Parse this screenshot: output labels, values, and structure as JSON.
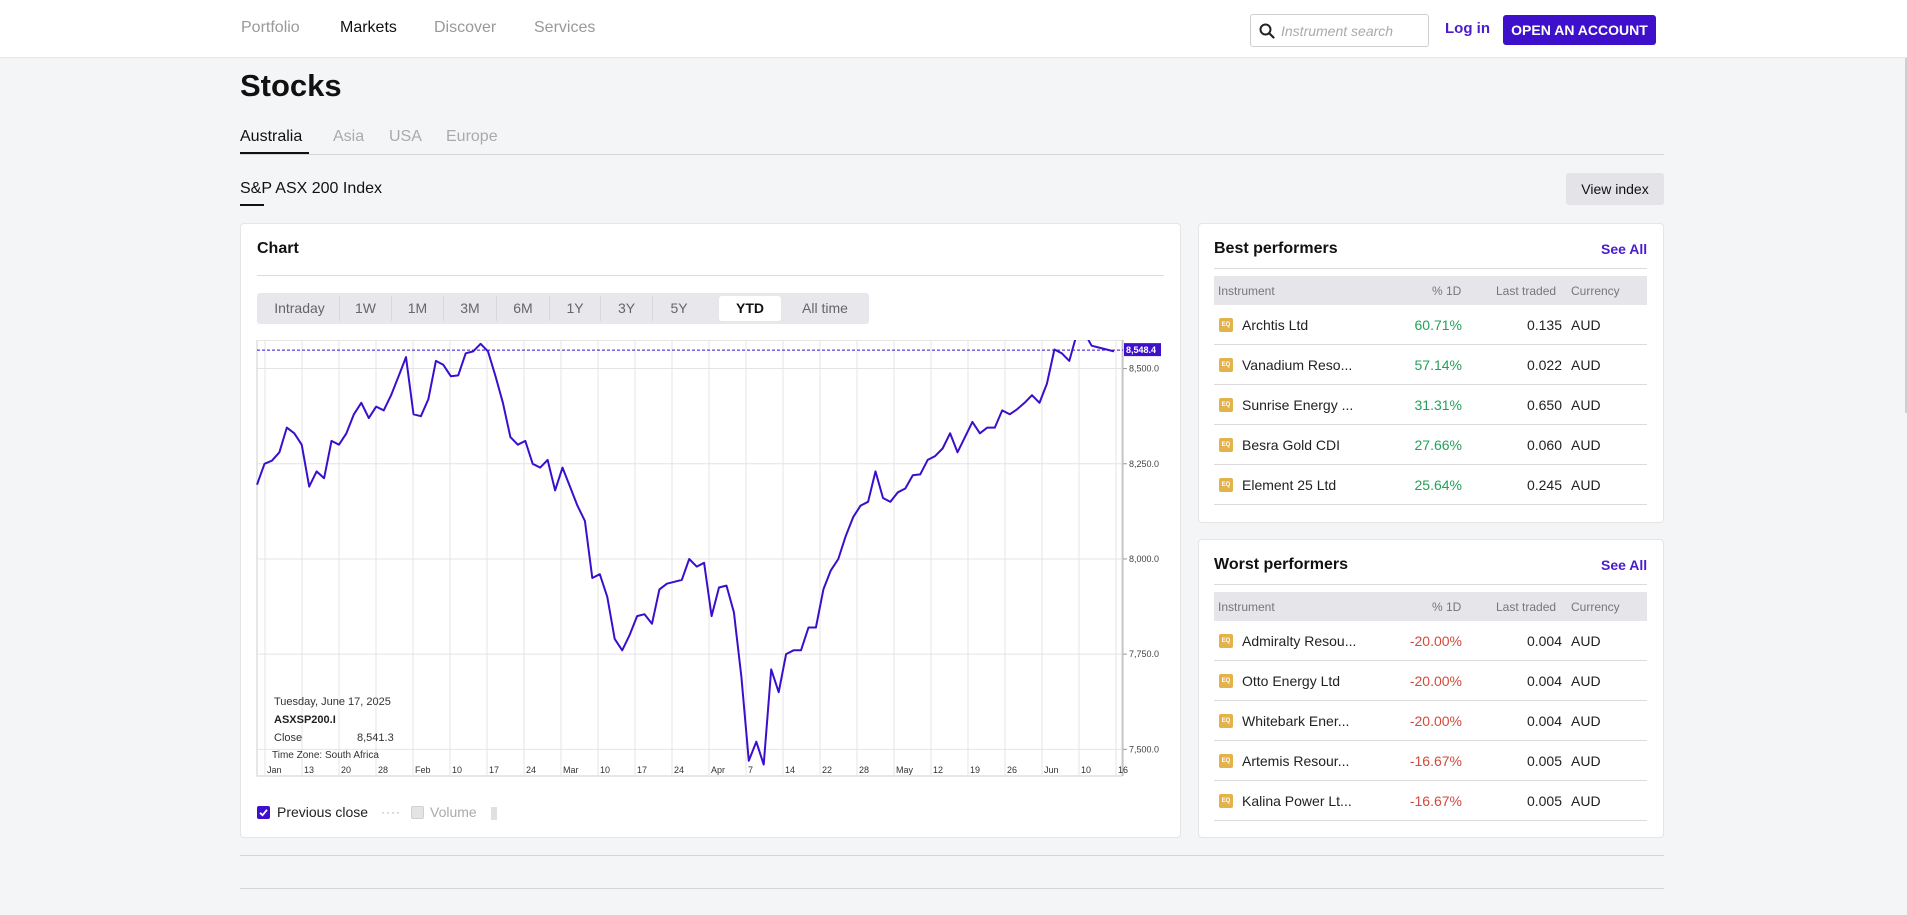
{
  "nav": {
    "items": [
      {
        "label": "Portfolio",
        "active": false
      },
      {
        "label": "Markets",
        "active": true
      },
      {
        "label": "Discover",
        "active": false
      },
      {
        "label": "Services",
        "active": false
      }
    ],
    "search_placeholder": "Instrument search",
    "login_label": "Log in",
    "open_account_label": "OPEN AN ACCOUNT"
  },
  "page": {
    "title": "Stocks",
    "regions": [
      "Australia",
      "Asia",
      "USA",
      "Europe"
    ],
    "active_region": "Australia",
    "index_title": "S&P ASX 200 Index",
    "view_index_label": "View index"
  },
  "chart_card": {
    "title": "Chart",
    "ranges": [
      "Intraday",
      "1W",
      "1M",
      "3M",
      "6M",
      "1Y",
      "3Y",
      "5Y",
      "YTD",
      "All time"
    ],
    "active_range": "YTD",
    "tooltip": {
      "date": "Tuesday, June 17, 2025",
      "symbol": "ASXSP200.I",
      "close_label": "Close",
      "close_value": "8,541.3",
      "timezone": "Time Zone: South Africa"
    },
    "legend": {
      "previous_close_label": "Previous close",
      "previous_close_checked": true,
      "volume_label": "Volume",
      "volume_checked": false
    }
  },
  "chart_data": {
    "type": "line",
    "series": [
      {
        "values": [
          8195,
          8250,
          8258,
          8280,
          8345,
          8330,
          8300,
          8190,
          8230,
          8212,
          8310,
          8300,
          8330,
          8380,
          8410,
          8370,
          8400,
          8390,
          8430,
          8480,
          8530,
          8380,
          8375,
          8420,
          8520,
          8510,
          8480,
          8482,
          8540,
          8545,
          8565,
          8545,
          8480,
          8410,
          8320,
          8300,
          8310,
          8250,
          8240,
          8260,
          8180,
          8240,
          8190,
          8140,
          8100,
          7950,
          7960,
          7900,
          7790,
          7760,
          7800,
          7850,
          7855,
          7830,
          7920,
          7935,
          7940,
          7945,
          8000,
          7980,
          7990,
          7850,
          7925,
          7930,
          7860,
          7690,
          7470,
          7520,
          7460,
          7710,
          7650,
          7750,
          7760,
          7760,
          7820,
          7820,
          7920,
          7970,
          8000,
          8060,
          8110,
          8140,
          8150,
          8230,
          8160,
          8150,
          8175,
          8185,
          8220,
          8222,
          8260,
          8270,
          8290,
          8330,
          8280,
          8320,
          8360,
          8330,
          8345,
          8345,
          8390,
          8380,
          8393,
          8410,
          8430,
          8410,
          8460,
          8550,
          8540,
          8520,
          8590,
          8595,
          8560,
          8555,
          8550,
          8545
        ]
      }
    ],
    "x_tick_labels": [
      "Jan",
      "13",
      "20",
      "28",
      "Feb",
      "10",
      "17",
      "24",
      "Mar",
      "10",
      "17",
      "24",
      "Apr",
      "7",
      "14",
      "22",
      "28",
      "May",
      "12",
      "19",
      "26",
      "Jun",
      "10",
      "16"
    ],
    "y_tick_labels": [
      "8,500.0",
      "8,250.0",
      "8,000.0",
      "7,750.0",
      "7,500.0"
    ],
    "y_ticks": [
      8500,
      8250,
      8000,
      7750,
      7500
    ],
    "previous_close": 8548.4,
    "previous_close_label": "8,548.4",
    "ylim": [
      7430,
      8575
    ],
    "x_range": [
      "2025-01-02",
      "2025-06-17"
    ],
    "line_color": "#3a0fcc",
    "grid": true
  },
  "best": {
    "title": "Best performers",
    "see_all_label": "See All",
    "columns": [
      "Instrument",
      "% 1D",
      "Last traded",
      "Currency"
    ],
    "badge_label": "EQ",
    "rows": [
      {
        "name": "Archtis Ltd",
        "pct": "60.71%",
        "last": "0.135",
        "currency": "AUD"
      },
      {
        "name": "Vanadium Reso...",
        "pct": "57.14%",
        "last": "0.022",
        "currency": "AUD"
      },
      {
        "name": "Sunrise Energy ...",
        "pct": "31.31%",
        "last": "0.650",
        "currency": "AUD"
      },
      {
        "name": "Besra Gold CDI",
        "pct": "27.66%",
        "last": "0.060",
        "currency": "AUD"
      },
      {
        "name": "Element 25 Ltd",
        "pct": "25.64%",
        "last": "0.245",
        "currency": "AUD"
      }
    ]
  },
  "worst": {
    "title": "Worst performers",
    "see_all_label": "See All",
    "columns": [
      "Instrument",
      "% 1D",
      "Last traded",
      "Currency"
    ],
    "badge_label": "EQ",
    "rows": [
      {
        "name": "Admiralty Resou...",
        "pct": "-20.00%",
        "last": "0.004",
        "currency": "AUD"
      },
      {
        "name": "Otto Energy Ltd",
        "pct": "-20.00%",
        "last": "0.004",
        "currency": "AUD"
      },
      {
        "name": "Whitebark Ener...",
        "pct": "-20.00%",
        "last": "0.004",
        "currency": "AUD"
      },
      {
        "name": "Artemis Resour...",
        "pct": "-16.67%",
        "last": "0.005",
        "currency": "AUD"
      },
      {
        "name": "Kalina Power Lt...",
        "pct": "-16.67%",
        "last": "0.005",
        "currency": "AUD"
      }
    ]
  },
  "colors": {
    "accent": "#3f10cc",
    "positive": "#23a05a",
    "negative": "#d14a3a",
    "badge": "#e3b24a"
  }
}
